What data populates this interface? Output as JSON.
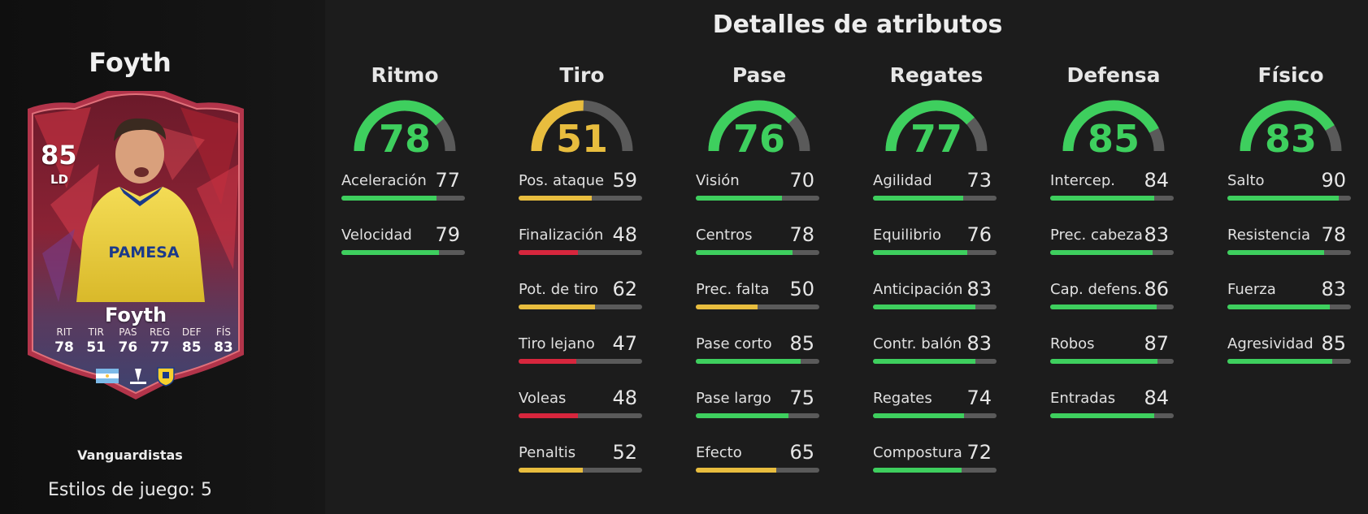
{
  "colors": {
    "high": "#3ecf5e",
    "medium": "#e8bd3e",
    "low": "#d7263d",
    "track": "#5a5a5a"
  },
  "player": {
    "name": "Foyth",
    "card": {
      "rating": "85",
      "position": "LD",
      "name": "Foyth",
      "stats": [
        {
          "label": "RIT",
          "value": "78"
        },
        {
          "label": "TIR",
          "value": "51"
        },
        {
          "label": "PAS",
          "value": "76"
        },
        {
          "label": "REG",
          "value": "77"
        },
        {
          "label": "DEF",
          "value": "85"
        },
        {
          "label": "FÍS",
          "value": "83"
        }
      ],
      "sponsor": "PAMESA"
    },
    "play_style": "Vanguardistas",
    "play_styles_count": "Estilos de juego: 5"
  },
  "details": {
    "title": "Detalles de atributos",
    "categories": [
      {
        "name": "Ritmo",
        "value": 78,
        "attributes": [
          {
            "label": "Aceleración",
            "value": 77
          },
          {
            "label": "Velocidad",
            "value": 79
          }
        ]
      },
      {
        "name": "Tiro",
        "value": 51,
        "attributes": [
          {
            "label": "Pos. ataque",
            "value": 59
          },
          {
            "label": "Finalización",
            "value": 48
          },
          {
            "label": "Pot. de tiro",
            "value": 62
          },
          {
            "label": "Tiro lejano",
            "value": 47
          },
          {
            "label": "Voleas",
            "value": 48
          },
          {
            "label": "Penaltis",
            "value": 52
          }
        ]
      },
      {
        "name": "Pase",
        "value": 76,
        "attributes": [
          {
            "label": "Visión",
            "value": 70
          },
          {
            "label": "Centros",
            "value": 78
          },
          {
            "label": "Prec. falta",
            "value": 50
          },
          {
            "label": "Pase corto",
            "value": 85
          },
          {
            "label": "Pase largo",
            "value": 75
          },
          {
            "label": "Efecto",
            "value": 65
          }
        ]
      },
      {
        "name": "Regates",
        "value": 77,
        "attributes": [
          {
            "label": "Agilidad",
            "value": 73
          },
          {
            "label": "Equilibrio",
            "value": 76
          },
          {
            "label": "Anticipación",
            "value": 83
          },
          {
            "label": "Contr. balón",
            "value": 83
          },
          {
            "label": "Regates",
            "value": 74
          },
          {
            "label": "Compostura",
            "value": 72
          }
        ]
      },
      {
        "name": "Defensa",
        "value": 85,
        "attributes": [
          {
            "label": "Intercep.",
            "value": 84
          },
          {
            "label": "Prec. cabeza",
            "value": 83
          },
          {
            "label": "Cap. defens.",
            "value": 86
          },
          {
            "label": "Robos",
            "value": 87
          },
          {
            "label": "Entradas",
            "value": 84
          }
        ]
      },
      {
        "name": "Físico",
        "value": 83,
        "attributes": [
          {
            "label": "Salto",
            "value": 90
          },
          {
            "label": "Resistencia",
            "value": 78
          },
          {
            "label": "Fuerza",
            "value": 83
          },
          {
            "label": "Agresividad",
            "value": 85
          }
        ]
      }
    ]
  }
}
